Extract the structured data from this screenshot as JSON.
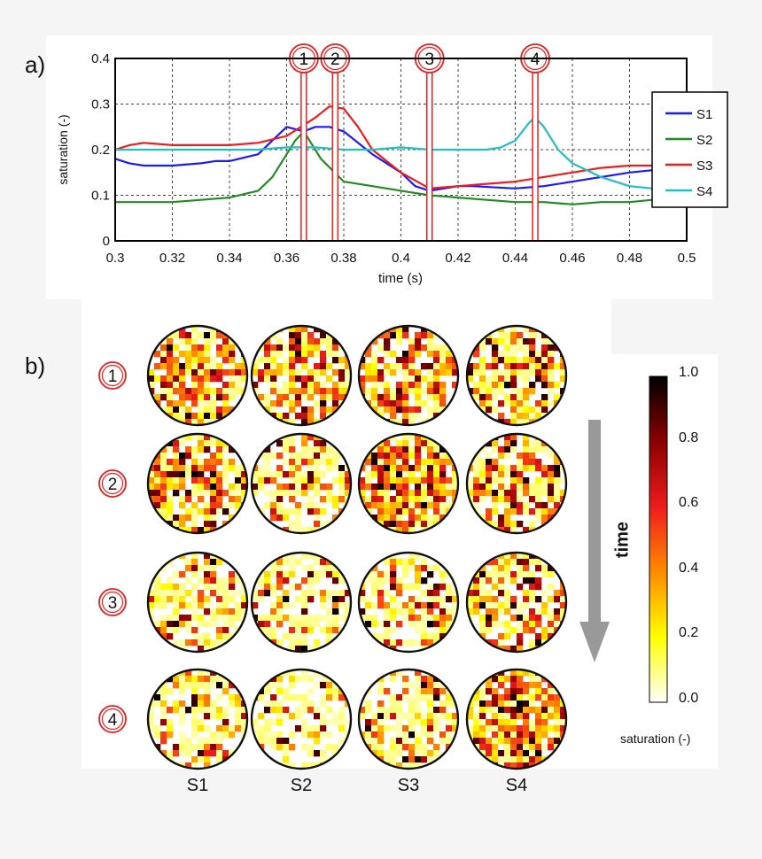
{
  "panel_a_label": "a)",
  "panel_b_label": "b)",
  "chart_data": {
    "type": "line",
    "xlabel": "time (s)",
    "ylabel": "saturation (-)",
    "xlim": [
      0.3,
      0.5
    ],
    "ylim": [
      0,
      0.4
    ],
    "xticks": [
      "0.3",
      "0.32",
      "0.34",
      "0.36",
      "0.38",
      "0.4",
      "0.42",
      "0.44",
      "0.46",
      "0.48",
      "0.5"
    ],
    "yticks": [
      "0",
      "0.1",
      "0.2",
      "0.3",
      "0.4"
    ],
    "grid": true,
    "legend_position": "top-right",
    "series": [
      {
        "name": "S1",
        "color": "#1a1aff",
        "x": [
          0.3,
          0.305,
          0.31,
          0.32,
          0.33,
          0.335,
          0.34,
          0.35,
          0.355,
          0.36,
          0.363,
          0.366,
          0.37,
          0.375,
          0.38,
          0.39,
          0.4,
          0.405,
          0.41,
          0.42,
          0.425,
          0.44,
          0.45,
          0.46,
          0.47,
          0.48,
          0.488
        ],
        "y": [
          0.18,
          0.17,
          0.165,
          0.165,
          0.17,
          0.175,
          0.175,
          0.19,
          0.22,
          0.25,
          0.245,
          0.24,
          0.25,
          0.25,
          0.24,
          0.19,
          0.15,
          0.12,
          0.11,
          0.12,
          0.12,
          0.115,
          0.12,
          0.13,
          0.14,
          0.15,
          0.155
        ]
      },
      {
        "name": "S2",
        "color": "#228b22",
        "x": [
          0.3,
          0.31,
          0.32,
          0.33,
          0.34,
          0.35,
          0.355,
          0.36,
          0.363,
          0.366,
          0.368,
          0.372,
          0.38,
          0.39,
          0.4,
          0.41,
          0.42,
          0.43,
          0.44,
          0.45,
          0.46,
          0.47,
          0.48,
          0.488
        ],
        "y": [
          0.085,
          0.085,
          0.085,
          0.09,
          0.095,
          0.11,
          0.14,
          0.19,
          0.22,
          0.24,
          0.22,
          0.18,
          0.13,
          0.12,
          0.11,
          0.1,
          0.095,
          0.09,
          0.085,
          0.085,
          0.08,
          0.085,
          0.085,
          0.09
        ]
      },
      {
        "name": "S3",
        "color": "#ee1c1c",
        "x": [
          0.3,
          0.305,
          0.31,
          0.32,
          0.33,
          0.34,
          0.35,
          0.36,
          0.365,
          0.37,
          0.375,
          0.38,
          0.385,
          0.39,
          0.4,
          0.41,
          0.42,
          0.43,
          0.44,
          0.45,
          0.46,
          0.47,
          0.48,
          0.488
        ],
        "y": [
          0.2,
          0.21,
          0.215,
          0.21,
          0.21,
          0.21,
          0.215,
          0.23,
          0.25,
          0.27,
          0.295,
          0.29,
          0.25,
          0.2,
          0.15,
          0.115,
          0.12,
          0.125,
          0.13,
          0.14,
          0.15,
          0.16,
          0.165,
          0.165
        ]
      },
      {
        "name": "S4",
        "color": "#22bfbf",
        "x": [
          0.3,
          0.31,
          0.32,
          0.33,
          0.34,
          0.35,
          0.36,
          0.37,
          0.38,
          0.39,
          0.4,
          0.41,
          0.42,
          0.43,
          0.435,
          0.44,
          0.445,
          0.447,
          0.45,
          0.455,
          0.46,
          0.47,
          0.48,
          0.488
        ],
        "y": [
          0.2,
          0.2,
          0.2,
          0.2,
          0.2,
          0.2,
          0.205,
          0.205,
          0.2,
          0.2,
          0.205,
          0.2,
          0.2,
          0.2,
          0.205,
          0.22,
          0.26,
          0.27,
          0.25,
          0.2,
          0.17,
          0.14,
          0.12,
          0.115
        ]
      }
    ],
    "markers": [
      {
        "label": "1",
        "x": 0.366
      },
      {
        "label": "2",
        "x": 0.377
      },
      {
        "label": "3",
        "x": 0.41
      },
      {
        "label": "4",
        "x": 0.447
      }
    ]
  },
  "heatmaps": {
    "rows": [
      "1",
      "2",
      "3",
      "4"
    ],
    "columns": [
      "S1",
      "S2",
      "S3",
      "S4"
    ],
    "mean_saturation": [
      [
        0.25,
        0.24,
        0.25,
        0.2
      ],
      [
        0.25,
        0.13,
        0.29,
        0.2
      ],
      [
        0.11,
        0.1,
        0.12,
        0.2
      ],
      [
        0.12,
        0.08,
        0.14,
        0.27
      ]
    ],
    "time_label": "time",
    "colorbar": {
      "title": "saturation (-)",
      "ticks": [
        "1.0",
        "0.8",
        "0.6",
        "0.4",
        "0.2",
        "0.0"
      ],
      "colors": [
        "#ffffff",
        "#ffff00",
        "#ff8c00",
        "#ee1c1c",
        "#8b0000",
        "#000000"
      ]
    }
  }
}
